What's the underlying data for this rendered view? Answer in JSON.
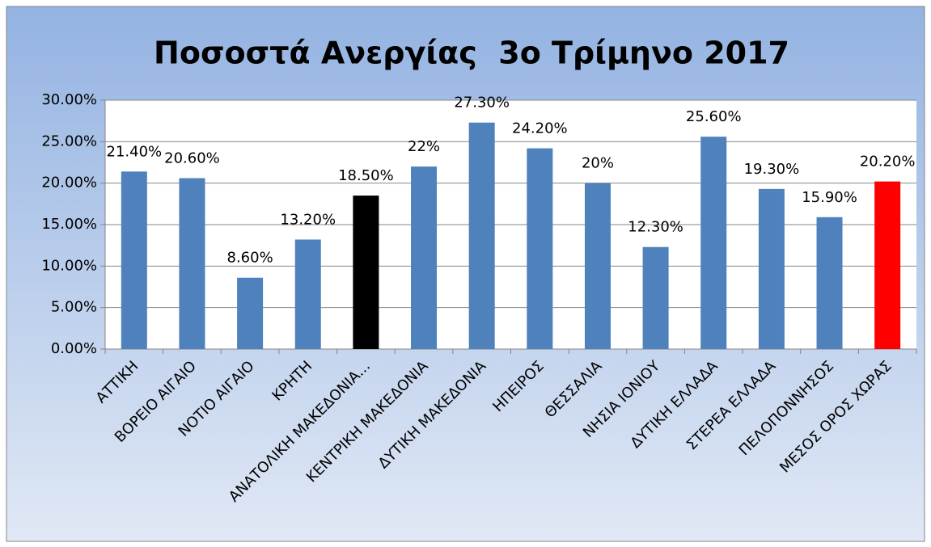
{
  "chart_data": {
    "type": "bar",
    "title": "Ποσοστά Ανεργίας  3ο Τρίμηνο 2017",
    "categories": [
      "ΑΤΤΙΚΗ",
      "ΒΟΡΕΙΟ ΑΙΓΑΙΟ",
      "ΝΟΤΙΟ ΑΙΓΑΙΟ",
      "ΚΡΗΤΗ",
      "ΑΝΑΤΟΛΙΚΗ ΜΑΚΕΔΟΝΙΑ...",
      "ΚΕΝΤΡΙΚΗ ΜΑΚΕΔΟΝΙΑ",
      "ΔΥΤΙΚΗ ΜΑΚΕΔΟΝΙΑ",
      "ΗΠΕΙΡΟΣ",
      "ΘΕΣΣΑΛΙΑ",
      "ΝΗΣΙΑ ΙΟΝΙΟΥ",
      "ΔΥΤΙΚΗ ΕΛΛΑΔΑ",
      "ΣΤΕΡΕΑ ΕΛΛΑΔΑ",
      "ΠΕΛΟΠΟΝΝΗΣΟΣ",
      "ΜΕΣΟΣ ΟΡΟΣ ΧΩΡΑΣ"
    ],
    "values": [
      21.4,
      20.6,
      8.6,
      13.2,
      18.5,
      22,
      27.3,
      24.2,
      20,
      12.3,
      25.6,
      19.3,
      15.9,
      20.2
    ],
    "value_labels": [
      "21.40%",
      "20.60%",
      "8.60%",
      "13.20%",
      "18.50%",
      "22%",
      "27.30%",
      "24.20%",
      "20%",
      "12.30%",
      "25.60%",
      "19.30%",
      "15.90%",
      "20.20%"
    ],
    "colors": [
      "#4f81bd",
      "#4f81bd",
      "#4f81bd",
      "#4f81bd",
      "#000000",
      "#4f81bd",
      "#4f81bd",
      "#4f81bd",
      "#4f81bd",
      "#4f81bd",
      "#4f81bd",
      "#4f81bd",
      "#4f81bd",
      "#ff0000"
    ],
    "ylim": [
      0,
      30
    ],
    "yticks": [
      {
        "value": 0,
        "label": "0.00%"
      },
      {
        "value": 5,
        "label": "5.00%"
      },
      {
        "value": 10,
        "label": "10.00%"
      },
      {
        "value": 15,
        "label": "15.00%"
      },
      {
        "value": 20,
        "label": "20.00%"
      },
      {
        "value": 25,
        "label": "25.00%"
      },
      {
        "value": 30,
        "label": "30.00%"
      }
    ],
    "grid": true
  }
}
